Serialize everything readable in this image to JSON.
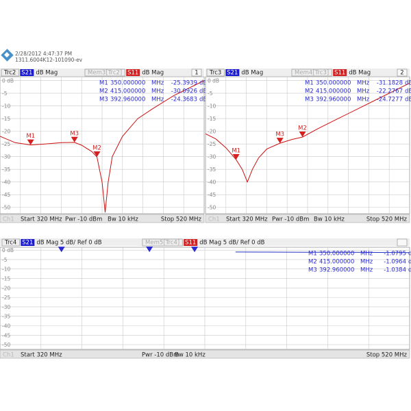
{
  "header": {
    "timestamp": "2/28/2012 4:47:37 PM",
    "device": "1311.6004K12-101090-ev"
  },
  "chart_data": [
    {
      "type": "line",
      "channel": 1,
      "active_trace": {
        "name": "Trc2",
        "param": "S21",
        "format": "dB Mag",
        "color": "#1a1ad0"
      },
      "series": [
        {
          "name": "Mem3[Trc2]",
          "param": "S11",
          "format": "dB Mag",
          "color": "#cc1010",
          "tag_color": "#d42020",
          "x": [
            320,
            335,
            350,
            365,
            380,
            393,
            400,
            410,
            415,
            420,
            423,
            426,
            430,
            440,
            455,
            470,
            490,
            510,
            520
          ],
          "values": [
            -22,
            -24.5,
            -25.4,
            -25,
            -24.5,
            -24.4,
            -25.5,
            -28,
            -30.1,
            -40,
            -52,
            -40,
            -30,
            -22,
            -15,
            -11,
            -6,
            -2,
            0
          ]
        }
      ],
      "xlim": [
        320,
        520
      ],
      "ylim": [
        -52.5,
        1.5
      ],
      "yticks": [
        {
          "value": 0,
          "label": "0 dB"
        },
        -5,
        -10,
        -15,
        -20,
        -25,
        -30,
        -35,
        -40,
        -45,
        -50
      ],
      "marker_color": "#d42020",
      "markers": [
        {
          "name": "M1",
          "x": {
            "value": 350,
            "label": "350.000000"
          },
          "y": {
            "value": -25.3939,
            "label": "-25.3939"
          }
        },
        {
          "name": "M2",
          "x": {
            "value": 415,
            "label": "415.000000"
          },
          "y": {
            "value": -30.0926,
            "label": "-30.0926"
          }
        },
        {
          "name": "M3",
          "x": {
            "value": 392.96,
            "label": "392.960000"
          },
          "y": {
            "value": -24.3683,
            "label": "-24.3683"
          }
        }
      ],
      "x_unit": "MHz",
      "y_unit": "dB",
      "footer": {
        "channel": "Ch1",
        "start": "Start 320 MHz",
        "power": "Pwr -10 dBm",
        "bandwidth": "Bw 10 kHz",
        "stop": "Stop 520 MHz"
      }
    },
    {
      "type": "line",
      "channel": 2,
      "active_trace": {
        "name": "Trc3",
        "param": "S21",
        "format": "dB Mag",
        "color": "#1a1ad0"
      },
      "series": [
        {
          "name": "Mem4[Trc3]",
          "param": "S11",
          "format": "dB Mag",
          "color": "#cc1010",
          "tag_color": "#d42020",
          "x": [
            320,
            330,
            340,
            350,
            356,
            361,
            366,
            372,
            380,
            393,
            405,
            415,
            430,
            450,
            470,
            490,
            505,
            520
          ],
          "values": [
            -21,
            -23,
            -26.5,
            -31.2,
            -35,
            -40,
            -35,
            -30.5,
            -27,
            -24.7,
            -23.2,
            -22.3,
            -19,
            -15,
            -11,
            -7,
            -4,
            -1
          ]
        }
      ],
      "xlim": [
        320,
        520
      ],
      "ylim": [
        -52.5,
        1.5
      ],
      "yticks": [
        {
          "value": 0,
          "label": "0 dB"
        },
        -5,
        -10,
        -15,
        -20,
        -25,
        -30,
        -35,
        -40,
        -45,
        -50
      ],
      "marker_color": "#d42020",
      "markers": [
        {
          "name": "M1",
          "x": {
            "value": 350,
            "label": "350.000000"
          },
          "y": {
            "value": -31.1828,
            "label": "-31.1828"
          }
        },
        {
          "name": "M2",
          "x": {
            "value": 415,
            "label": "415.000000"
          },
          "y": {
            "value": -22.2767,
            "label": "-22.2767"
          }
        },
        {
          "name": "M3",
          "x": {
            "value": 392.96,
            "label": "392.960000"
          },
          "y": {
            "value": -24.7277,
            "label": "-24.7277"
          }
        }
      ],
      "x_unit": "MHz",
      "y_unit": "dB",
      "footer": {
        "channel": "Ch1",
        "start": "Start 320 MHz",
        "power": "Pwr -10 dBm",
        "bandwidth": "Bw 10 kHz",
        "stop": "Stop 520 MHz"
      }
    },
    {
      "type": "line",
      "active_trace": {
        "name": "Trc4",
        "param": "S21",
        "format": "dB Mag 5 dB/ Ref 0 dB",
        "color": "#1a1ad0"
      },
      "series": [
        {
          "name": "Mem5[Trc4]",
          "param": "S11",
          "format": "dB Mag 5 dB/ Ref 0 dB",
          "color": "#2030c0",
          "tag_color": "#d42020",
          "x": [
            435,
            450,
            470,
            490,
            505,
            520
          ],
          "values": [
            -1.0,
            -1.05,
            -1.1,
            -1.15,
            -1.2,
            -1.3
          ]
        }
      ],
      "xlim": [
        320,
        520
      ],
      "ylim": [
        -52.5,
        1.5
      ],
      "yticks": [
        {
          "value": 0,
          "label": "0 dB"
        },
        -5,
        -10,
        -15,
        -20,
        -25,
        -30,
        -35,
        -40,
        -45,
        -50
      ],
      "marker_color": "#2a2ad0",
      "markers": [
        {
          "name": "M1",
          "x": {
            "value": 350,
            "label": "350.000000"
          },
          "y": {
            "value": -1.0795,
            "label": "-1.0795"
          }
        },
        {
          "name": "M2",
          "x": {
            "value": 415,
            "label": "415.000000"
          },
          "y": {
            "value": -1.0964,
            "label": "-1.0964"
          }
        },
        {
          "name": "M3",
          "x": {
            "value": 392.96,
            "label": "392.960000"
          },
          "y": {
            "value": -1.0384,
            "label": "-1.0384"
          }
        }
      ],
      "x_unit": "MHz",
      "y_unit": "dB",
      "footer": {
        "channel": "Ch1",
        "start": "Start 320 MHz",
        "power": "Pwr -10 dBm",
        "bandwidth": "Bw 10 kHz",
        "stop": "Stop 520 MHz"
      }
    }
  ]
}
